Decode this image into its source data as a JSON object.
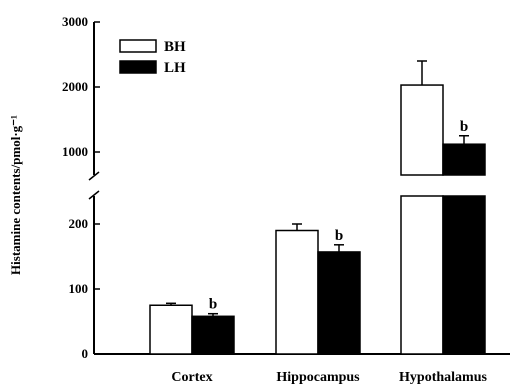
{
  "chart_data": {
    "type": "bar",
    "title": "",
    "ylabel": "Histamine contents/pmol·g⁻¹",
    "xlabel": "",
    "categories": [
      "Cortex",
      "Hippocampus",
      "Hypothalamus"
    ],
    "series": [
      {
        "name": "BH",
        "color": "#ffffff",
        "values": [
          75,
          190,
          2030
        ],
        "errors": [
          3,
          10,
          370
        ],
        "annotations": [
          "",
          "",
          ""
        ]
      },
      {
        "name": "LH",
        "color": "#000000",
        "values": [
          58,
          157,
          1120
        ],
        "errors": [
          4,
          11,
          130
        ],
        "annotations": [
          "b",
          "b",
          "b"
        ]
      }
    ],
    "y_axis": {
      "broken": true,
      "lower_segment": {
        "range": [
          0,
          250
        ],
        "ticks": [
          0,
          100,
          200
        ]
      },
      "upper_segment": {
        "range": [
          900,
          3000
        ],
        "ticks": [
          1000,
          2000,
          3000
        ]
      }
    },
    "legend": {
      "placement": "top-left"
    },
    "grid": false
  }
}
